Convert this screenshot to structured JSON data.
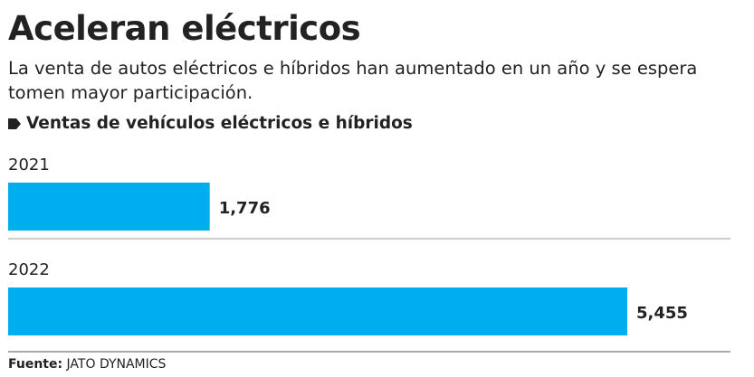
{
  "chart_data": {
    "type": "bar",
    "orientation": "horizontal",
    "title": "Aceleran eléctricos",
    "subtitle": "La venta de autos eléctricos e híbridos han aumentado en un año y se espera tomen mayor participación.",
    "chart_label": "Ventas de vehículos eléctricos e híbridos",
    "categories": [
      "2021",
      "2022"
    ],
    "values": [
      1776,
      5455
    ],
    "value_labels": [
      "1,776",
      "5,455"
    ],
    "color": "#00adef",
    "source": {
      "label": "Fuente:",
      "text": "JATO DYNAMICS"
    }
  }
}
